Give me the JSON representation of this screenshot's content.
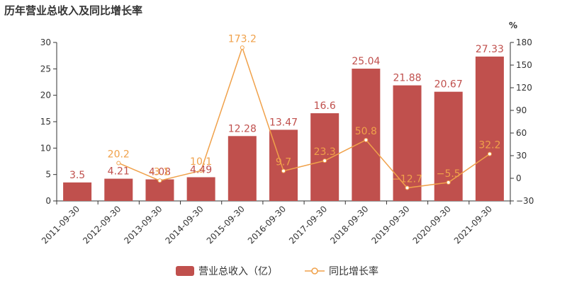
{
  "title": "历年营业总收入及同比增长率",
  "colors": {
    "bar": "#c0504d",
    "line": "#f0a14a",
    "axis": "#333333",
    "grid": "#e0e0e0"
  },
  "chart_data": {
    "type": "bar",
    "categories": [
      "2011-09-30",
      "2012-09-30",
      "2013-09-30",
      "2014-09-30",
      "2015-09-30",
      "2016-09-30",
      "2017-09-30",
      "2018-09-30",
      "2019-09-30",
      "2020-09-30",
      "2021-09-30"
    ],
    "series": [
      {
        "name": "营业总收入（亿）",
        "type": "bar",
        "axis": "left",
        "values": [
          3.5,
          4.21,
          4.08,
          4.49,
          12.28,
          13.47,
          16.6,
          25.04,
          21.88,
          20.67,
          27.33
        ],
        "labels": [
          "3.5",
          "4.21",
          "4.08",
          "4.49",
          "12.28",
          "13.47",
          "16.6",
          "25.04",
          "21.88",
          "20.67",
          "27.33"
        ]
      },
      {
        "name": "同比增长率",
        "type": "line",
        "axis": "right",
        "values": [
          null,
          20.2,
          -3.1,
          10.1,
          173.2,
          9.7,
          23.3,
          50.8,
          -12.7,
          -5.5,
          32.2
        ],
        "labels": [
          null,
          "20.2",
          "-3.1",
          "10.1",
          "173.2",
          "9.7",
          "23.3",
          "50.8",
          "−12.7",
          "−5.5",
          "32.2"
        ]
      }
    ],
    "left_axis": {
      "ylim": [
        0,
        30
      ],
      "ticks": [
        "0",
        "5",
        "10",
        "15",
        "20",
        "25",
        "30"
      ]
    },
    "right_axis": {
      "unit": "%",
      "ylim": [
        -30,
        180
      ],
      "ticks": [
        "−30",
        "0",
        "30",
        "60",
        "90",
        "120",
        "150",
        "180"
      ]
    },
    "legend_position": "bottom-center",
    "grid": false
  }
}
